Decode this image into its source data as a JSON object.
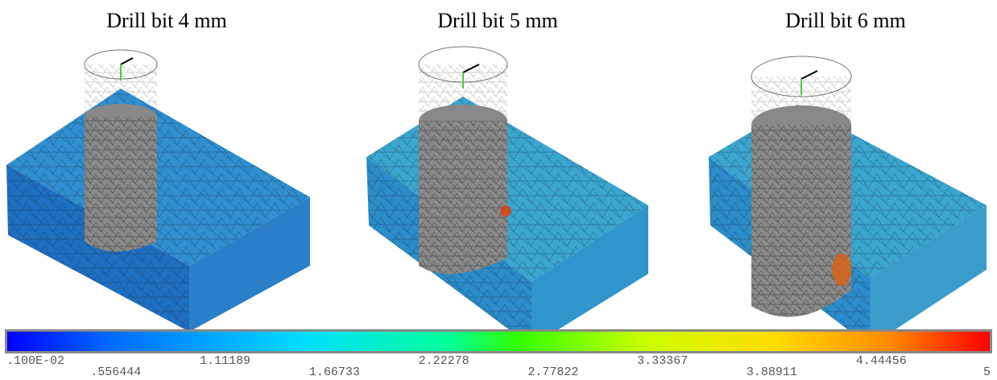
{
  "panels": [
    {
      "title": "Drill bit 4 mm"
    },
    {
      "title": "Drill bit 5 mm"
    },
    {
      "title": "Drill bit 6 mm"
    }
  ],
  "colorbar": {
    "labels": [
      ".100E-02",
      ".556444",
      "1.11189",
      "1.66733",
      "2.22278",
      "2.77822",
      "3.33367",
      "3.88911",
      "4.44456",
      "5"
    ]
  }
}
